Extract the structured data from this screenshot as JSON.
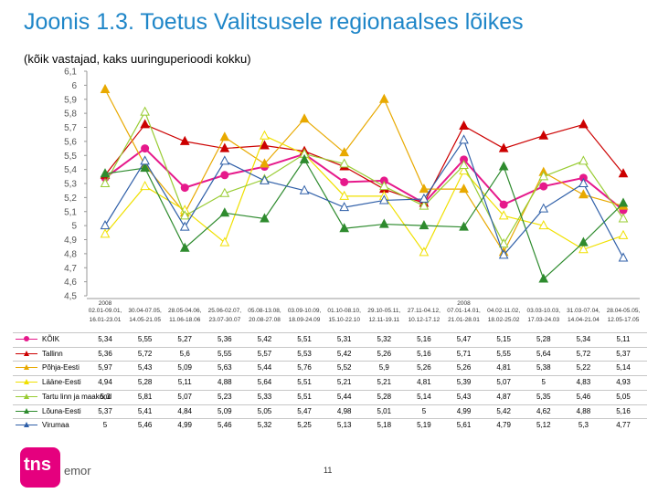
{
  "header": {
    "title": "Joonis 1.3. Toetus Valitsusele regionaalses lõikes",
    "subtitle": "(kõik vastajad, kaks uuringuperioodi kokku)"
  },
  "footer": {
    "page_number": "11",
    "logo_text": "tns",
    "logo_word": "emor"
  },
  "chart_data": {
    "type": "line",
    "title": "",
    "xlabel": "",
    "ylabel": "",
    "ylim": [
      4.5,
      6.1
    ],
    "ytick_step": 0.1,
    "grid": false,
    "legend_placement": "table-below",
    "y_tick_labels": [
      "4,5",
      "4,6",
      "4,7",
      "4,8",
      "4,9",
      "5",
      "5,1",
      "5,2",
      "5,3",
      "5,4",
      "5,5",
      "5,6",
      "5,7",
      "5,8",
      "5,9",
      "6",
      "6,1"
    ],
    "x_labels_top": [
      "02.01-09.01, 2008",
      "30.04-07.05,",
      "28.05-04.06,",
      "25.06-02.07,",
      "05.08-13.08,",
      "03.09-10.09,",
      "01.10-08.10,",
      "29.10-05.11,",
      "27.11-04.12,",
      "07.01-14.01, 2008",
      "04.02-11.02,",
      "03.03-10.03,",
      "31.03-07.04,",
      "28.04-05.05,"
    ],
    "x_labels_bottom": [
      "16.01-23.01",
      "14.05-21.05",
      "11.06-18.06",
      "23.07-30.07",
      "20.08-27.08",
      "18.09-24.09",
      "15.10-22.10",
      "12.11-19.11",
      "10.12-17.12",
      "21.01-28.01",
      "18.02-25.02",
      "17.03-24.03",
      "14.04-21.04",
      "12.05-17.05"
    ],
    "series": [
      {
        "name": "KÕIK",
        "color": "#e6198b",
        "marker": "circle",
        "labels": [
          "5,34",
          "5,55",
          "5,27",
          "5,36",
          "5,42",
          "5,51",
          "5,31",
          "5,32",
          "5,16",
          "5,47",
          "5,15",
          "5,28",
          "5,34",
          "5,11"
        ],
        "values": [
          5.34,
          5.55,
          5.27,
          5.36,
          5.42,
          5.51,
          5.31,
          5.32,
          5.16,
          5.47,
          5.15,
          5.28,
          5.34,
          5.11
        ]
      },
      {
        "name": "Tallinn",
        "color": "#cc0000",
        "marker": "triangle",
        "labels": [
          "5,36",
          "5,72",
          "5,6",
          "5,55",
          "5,57",
          "5,53",
          "5,42",
          "5,26",
          "5,16",
          "5,71",
          "5,55",
          "5,64",
          "5,72",
          "5,37"
        ],
        "values": [
          5.36,
          5.72,
          5.6,
          5.55,
          5.57,
          5.53,
          5.42,
          5.26,
          5.16,
          5.71,
          5.55,
          5.64,
          5.72,
          5.37
        ]
      },
      {
        "name": "Põhja-Eesti",
        "color": "#e8a900",
        "marker": "triangle",
        "labels": [
          "5,97",
          "5,43",
          "5,09",
          "5,63",
          "5,44",
          "5,76",
          "5,52",
          "5,9",
          "5,26",
          "5,26",
          "4,81",
          "5,38",
          "5,22",
          "5,14"
        ],
        "values": [
          5.97,
          5.43,
          5.09,
          5.63,
          5.44,
          5.76,
          5.52,
          5.9,
          5.26,
          5.26,
          4.81,
          5.38,
          5.22,
          5.14
        ]
      },
      {
        "name": "Lääne-Eesti",
        "color": "#f0e000",
        "marker": "triangle",
        "labels": [
          "4,94",
          "5,28",
          "5,11",
          "4,88",
          "5,64",
          "5,51",
          "5,21",
          "5,21",
          "4,81",
          "5,39",
          "5,07",
          "5",
          "4,83",
          "4,93"
        ],
        "values": [
          4.94,
          5.28,
          5.11,
          4.88,
          5.64,
          5.51,
          5.21,
          5.21,
          4.81,
          5.39,
          5.07,
          5.0,
          4.83,
          4.93
        ]
      },
      {
        "name": "Tartu linn ja maakond",
        "color": "#99cc33",
        "marker": "triangle",
        "labels": [
          "5,3",
          "5,81",
          "5,07",
          "5,23",
          "5,33",
          "5,51",
          "5,44",
          "5,28",
          "5,14",
          "5,43",
          "4,87",
          "5,35",
          "5,46",
          "5,05"
        ],
        "values": [
          5.3,
          5.81,
          5.07,
          5.23,
          5.33,
          5.51,
          5.44,
          5.28,
          5.14,
          5.43,
          4.87,
          5.35,
          5.46,
          5.05
        ]
      },
      {
        "name": "Lõuna-Eesti",
        "color": "#2e8b2e",
        "marker": "triangle",
        "labels": [
          "5,37",
          "5,41",
          "4,84",
          "5,09",
          "5,05",
          "5,47",
          "4,98",
          "5,01",
          "5",
          "4,99",
          "5,42",
          "4,62",
          "4,88",
          "5,16"
        ],
        "values": [
          5.37,
          5.41,
          4.84,
          5.09,
          5.05,
          5.47,
          4.98,
          5.01,
          5.0,
          4.99,
          5.42,
          4.62,
          4.88,
          5.16
        ]
      },
      {
        "name": "Virumaa",
        "color": "#2f5fa8",
        "marker": "triangle",
        "labels": [
          "5",
          "5,46",
          "4,99",
          "5,46",
          "5,32",
          "5,25",
          "5,13",
          "5,18",
          "5,19",
          "5,61",
          "4,79",
          "5,12",
          "5,3",
          "4,77"
        ],
        "values": [
          5.0,
          5.46,
          4.99,
          5.46,
          5.32,
          5.25,
          5.13,
          5.18,
          5.19,
          5.61,
          4.79,
          5.12,
          5.3,
          4.77
        ]
      }
    ]
  }
}
